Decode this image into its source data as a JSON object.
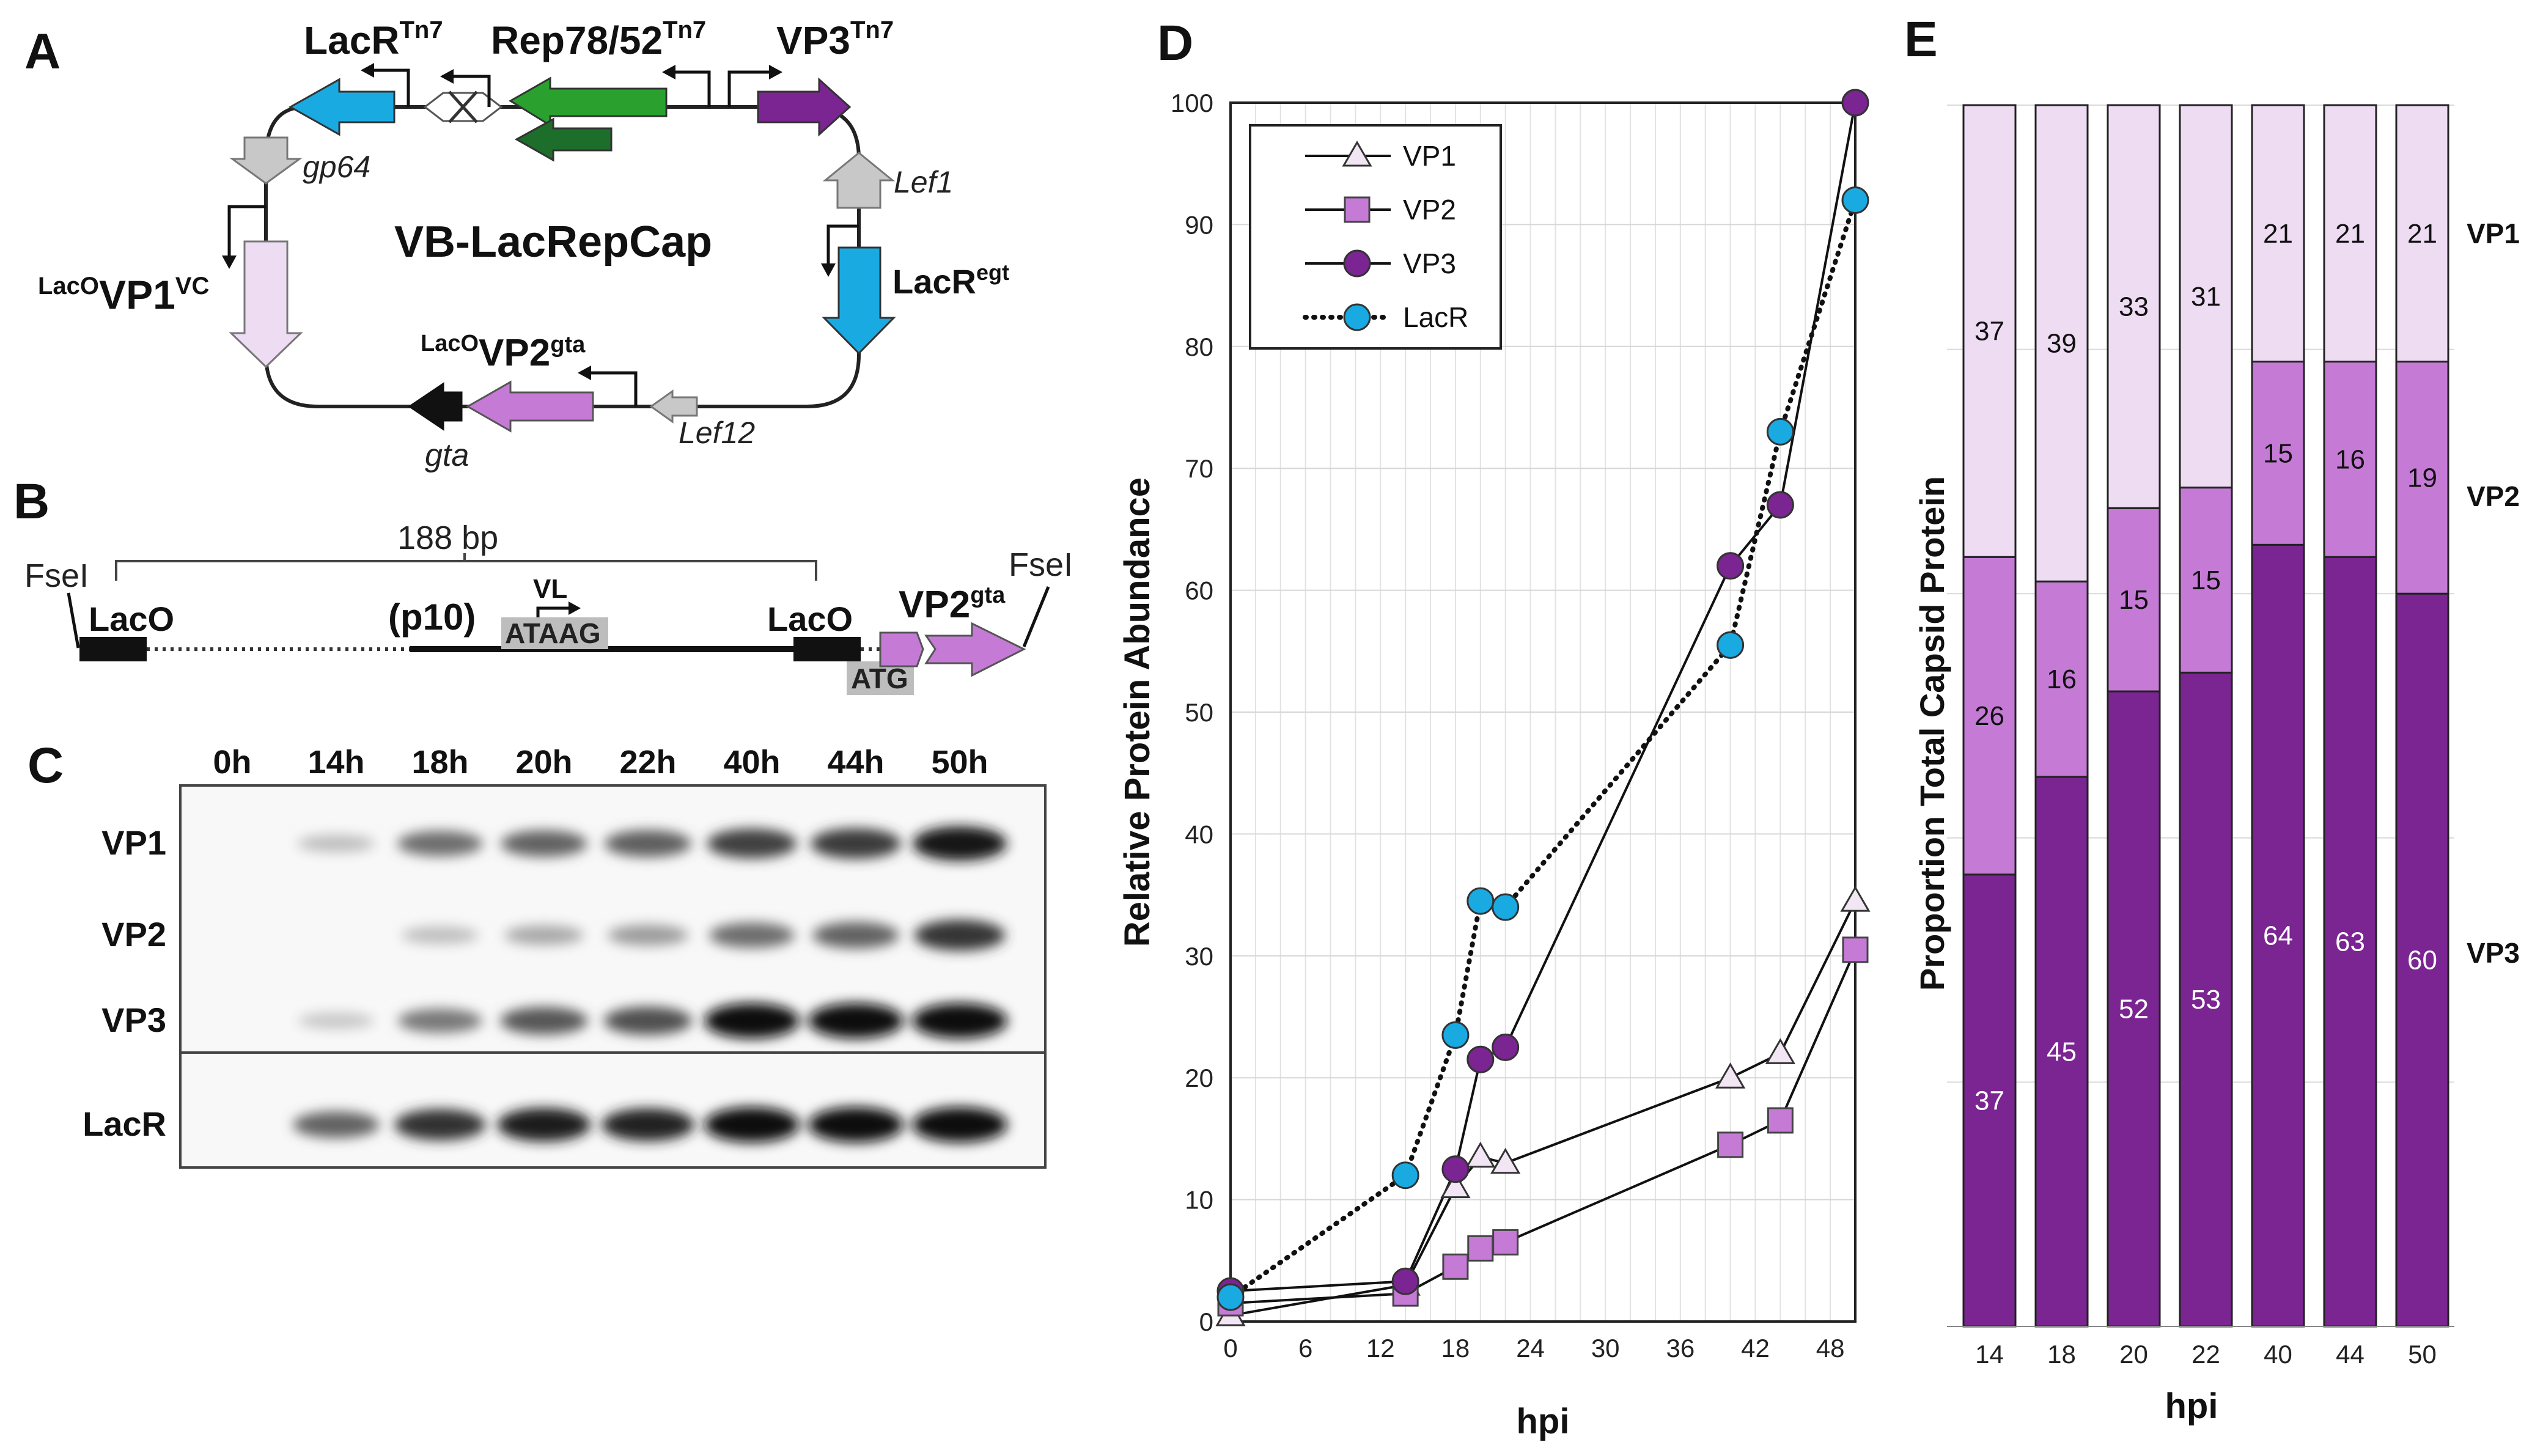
{
  "panel_labels": {
    "a": "A",
    "b": "B",
    "c": "C",
    "d": "D",
    "e": "E"
  },
  "colors": {
    "cyan": "#1AAAE2",
    "green": "#2AA12E",
    "dark_green": "#1C6E2A",
    "purple_dark": "#7A2591",
    "purple_mid": "#C57BD6",
    "purple_light": "#EEDCF3",
    "grey_arrow": "#C8C8C8",
    "black": "#111111"
  },
  "panel_a": {
    "title": "VB-LacRepCap",
    "lacr_tn7": "LacR",
    "lacr_tn7_sup": "Tn7",
    "rep_tn7": "Rep78/52",
    "rep_tn7_sup": "Tn7",
    "vp3_tn7": "VP3",
    "vp3_tn7_sup": "Tn7",
    "gp64": "gp64",
    "lef1": "Lef1",
    "lacr_egt": "LacR",
    "lacr_egt_sup": "egt",
    "vp1_pre": "LacO",
    "vp1": "VP1",
    "vp1_sup": "VC",
    "vp2_pre": "LacO",
    "vp2": "VP2",
    "vp2_sup": "gta",
    "gta": "gta",
    "lef12": "Lef12"
  },
  "panel_b": {
    "fsei_left": "FseI",
    "fsei_right": "FseI",
    "bp_label": "188 bp",
    "laco_left": "LacO",
    "laco_right": "LacO",
    "p10": "(p10)",
    "vl": "VL",
    "ataag": "ATAAG",
    "atg": "ATG",
    "vp2": "VP2",
    "vp2_sup": "gta"
  },
  "panel_c": {
    "timepoints": [
      "0h",
      "14h",
      "18h",
      "20h",
      "22h",
      "40h",
      "44h",
      "50h"
    ],
    "rows": [
      "VP1",
      "VP2",
      "VP3",
      "LacR"
    ],
    "intensity": {
      "VP1": [
        0,
        0.18,
        0.55,
        0.6,
        0.62,
        0.75,
        0.78,
        0.95
      ],
      "VP2": [
        0,
        0,
        0.18,
        0.28,
        0.34,
        0.55,
        0.6,
        0.8
      ],
      "VP3": [
        0,
        0.14,
        0.5,
        0.65,
        0.68,
        1,
        1,
        1
      ],
      "LacR": [
        0,
        0.6,
        0.82,
        0.92,
        0.88,
        1,
        1,
        1
      ]
    }
  },
  "chart_data": [
    {
      "type": "line",
      "xlabel": "hpi",
      "ylabel": "Relative Protein Abundance",
      "xlim": [
        0,
        50
      ],
      "ylim": [
        0,
        100
      ],
      "xticks": [
        0,
        6,
        12,
        18,
        24,
        30,
        36,
        42,
        48
      ],
      "yticks": [
        0,
        10,
        20,
        30,
        40,
        50,
        60,
        70,
        80,
        90,
        100
      ],
      "legend_position": "top-left",
      "series": [
        {
          "name": "VP1",
          "marker": "triangle",
          "style": "solid",
          "points": [
            [
              0,
              0.5
            ],
            [
              14,
              3
            ],
            [
              18,
              11
            ],
            [
              20,
              13.5
            ],
            [
              22,
              13
            ],
            [
              40,
              20
            ],
            [
              44,
              22
            ],
            [
              50,
              34.5
            ]
          ]
        },
        {
          "name": "VP2",
          "marker": "square",
          "style": "solid",
          "points": [
            [
              0,
              1.5
            ],
            [
              14,
              2.3
            ],
            [
              18,
              4.5
            ],
            [
              20,
              6
            ],
            [
              22,
              6.5
            ],
            [
              40,
              14.5
            ],
            [
              44,
              16.5
            ],
            [
              50,
              30.5
            ]
          ]
        },
        {
          "name": "VP3",
          "marker": "circle-dark",
          "style": "solid",
          "points": [
            [
              0,
              2.5
            ],
            [
              14,
              3.3
            ],
            [
              18,
              12.5
            ],
            [
              20,
              21.5
            ],
            [
              22,
              22.5
            ],
            [
              40,
              62
            ],
            [
              44,
              67
            ],
            [
              50,
              100
            ]
          ]
        },
        {
          "name": "LacR",
          "marker": "circle-cyan",
          "style": "dotted",
          "points": [
            [
              0,
              2
            ],
            [
              14,
              12
            ],
            [
              18,
              23.5
            ],
            [
              20,
              34.5
            ],
            [
              22,
              34
            ],
            [
              40,
              55.5
            ],
            [
              44,
              73
            ],
            [
              50,
              92
            ]
          ]
        }
      ]
    },
    {
      "type": "bar",
      "stacked": true,
      "xlabel": "hpi",
      "ylabel": "Proportion Total Capsid Protein",
      "categories": [
        "14",
        "18",
        "20",
        "22",
        "40",
        "44",
        "50"
      ],
      "series": [
        {
          "name": "VP3",
          "values": [
            37,
            45,
            52,
            53,
            64,
            63,
            60
          ]
        },
        {
          "name": "VP2",
          "values": [
            26,
            16,
            15,
            15,
            15,
            16,
            19
          ]
        },
        {
          "name": "VP1",
          "values": [
            37,
            39,
            33,
            31,
            21,
            21,
            21
          ]
        }
      ],
      "legend": [
        "VP1",
        "VP2",
        "VP3"
      ]
    }
  ]
}
